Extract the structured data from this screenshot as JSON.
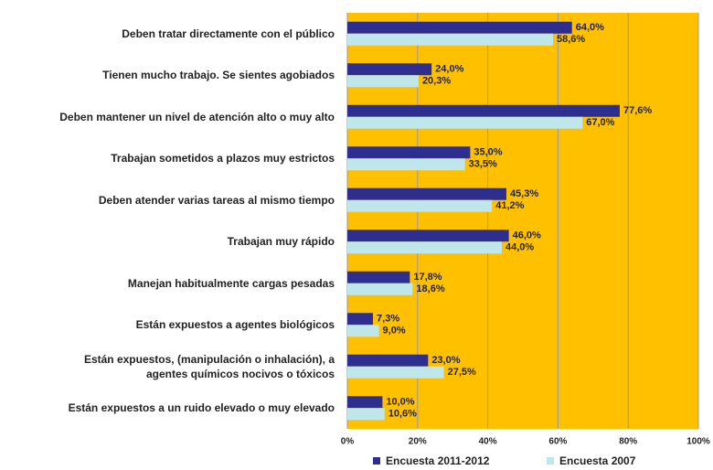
{
  "chart_data": {
    "type": "hbar",
    "categories": [
      "Deben tratar directamente con el público",
      "Tienen mucho trabajo. Se sientes agobiados",
      "Deben mantener un nivel de atención alto o muy alto",
      "Trabajan sometidos a plazos muy estrictos",
      "Deben atender varias tareas al mismo tiempo",
      "Trabajan muy rápido",
      "Manejan habitualmente cargas pesadas",
      "Están expuestos a agentes biológicos",
      "Están expuestos, (manipulación o inhalación), a\nagentes químicos nocivos o tóxicos",
      "Están expuestos a un ruido elevado o muy elevado"
    ],
    "series": [
      {
        "name": "Encuesta 2011-2012",
        "color": "#2e2e8f",
        "values": [
          64.0,
          24.0,
          77.6,
          35.0,
          45.3,
          46.0,
          17.8,
          7.3,
          23.0,
          10.0
        ],
        "value_labels": [
          "64,0%",
          "24,0%",
          "77,6%",
          "35,0%",
          "45,3%",
          "46,0%",
          "17,8%",
          "7,3%",
          "23,0%",
          "10,0%"
        ]
      },
      {
        "name": "Encuesta 2007",
        "color": "#bfe6ea",
        "values": [
          58.6,
          20.3,
          67.0,
          33.5,
          41.2,
          44.0,
          18.6,
          9.0,
          27.5,
          10.6
        ],
        "value_labels": [
          "58,6%",
          "20,3%",
          "67,0%",
          "33,5%",
          "41,2%",
          "44,0%",
          "18,6%",
          "9,0%",
          "27,5%",
          "10,6%"
        ]
      }
    ],
    "xlim": [
      0,
      100
    ],
    "xticks": [
      {
        "value": 0,
        "label": "0%"
      },
      {
        "value": 20,
        "label": "20%"
      },
      {
        "value": 40,
        "label": "40%"
      },
      {
        "value": 60,
        "label": "60%"
      },
      {
        "value": 80,
        "label": "80%"
      },
      {
        "value": 100,
        "label": "100%"
      }
    ],
    "grid": true,
    "background": "#ffc000",
    "legend": "bottom"
  }
}
